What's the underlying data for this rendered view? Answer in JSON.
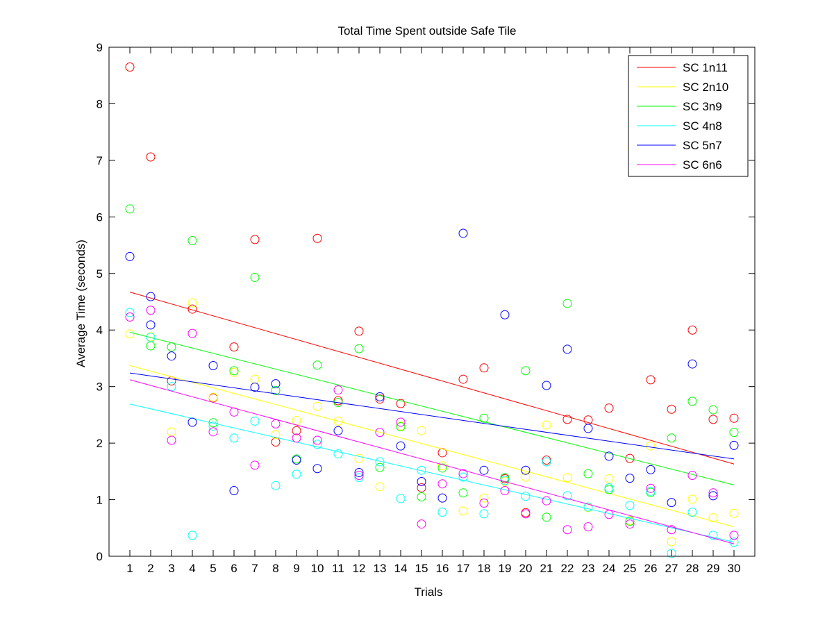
{
  "chart_data": {
    "type": "scatter",
    "title": "Total Time Spent outside Safe Tile",
    "xlabel": "Trials",
    "ylabel": "Average Time (seconds)",
    "xlim": [
      0,
      31
    ],
    "ylim": [
      0,
      9
    ],
    "xticks": [
      1,
      2,
      3,
      4,
      5,
      6,
      7,
      8,
      9,
      10,
      11,
      12,
      13,
      14,
      15,
      16,
      17,
      18,
      19,
      20,
      21,
      22,
      23,
      24,
      25,
      26,
      27,
      28,
      29,
      30
    ],
    "yticks": [
      0,
      1,
      2,
      3,
      4,
      5,
      6,
      7,
      8,
      9
    ],
    "grid": false,
    "legend_position": "top-right",
    "x": [
      1,
      2,
      3,
      4,
      5,
      6,
      7,
      8,
      9,
      10,
      11,
      12,
      13,
      14,
      15,
      16,
      17,
      18,
      19,
      20,
      21,
      22,
      23,
      24,
      25,
      26,
      27,
      28,
      29,
      30
    ],
    "series": [
      {
        "name": "SC 1n11",
        "color": "#ff0000",
        "values": [
          8.65,
          7.06,
          3.1,
          4.37,
          2.8,
          3.7,
          5.6,
          2.02,
          2.22,
          5.62,
          2.75,
          3.98,
          2.78,
          2.7,
          1.21,
          1.83,
          3.13,
          3.33,
          1.37,
          0.77,
          1.7,
          2.42,
          2.41,
          2.62,
          1.73,
          3.12,
          2.6,
          4.0,
          2.42,
          2.44
        ],
        "fit": [
          4.67,
          1.63
        ]
      },
      {
        "name": "SC 2n10",
        "color": "#ffff00",
        "values": [
          3.93,
          3.88,
          2.2,
          4.48,
          2.81,
          3.25,
          3.13,
          2.15,
          2.4,
          2.65,
          2.39,
          1.73,
          1.23,
          2.3,
          2.22,
          1.6,
          0.8,
          1.03,
          1.32,
          1.4,
          2.32,
          1.39,
          0.86,
          1.37,
          0.63,
          1.95,
          0.26,
          1.01,
          0.68,
          0.76
        ],
        "fit": [
          3.37,
          0.52
        ]
      },
      {
        "name": "SC 3n9",
        "color": "#00ff00",
        "values": [
          6.14,
          3.72,
          3.7,
          5.58,
          2.36,
          3.28,
          4.93,
          2.93,
          1.72,
          3.38,
          2.72,
          3.67,
          1.57,
          2.29,
          1.05,
          1.56,
          1.12,
          2.44,
          1.39,
          3.28,
          0.69,
          4.47,
          1.46,
          1.18,
          0.62,
          1.13,
          2.09,
          2.74,
          2.59,
          2.19
        ],
        "fit": [
          3.96,
          1.26
        ]
      },
      {
        "name": "SC 4n8",
        "color": "#00ffff",
        "values": [
          4.31,
          3.87,
          3.0,
          0.37,
          2.3,
          2.09,
          2.39,
          1.25,
          1.45,
          1.98,
          1.81,
          1.39,
          1.67,
          1.02,
          1.52,
          0.78,
          1.4,
          0.75,
          1.34,
          1.06,
          1.67,
          1.07,
          0.87,
          1.21,
          0.9,
          1.15,
          0.05,
          0.78,
          0.37,
          0.25
        ],
        "fit": [
          2.69,
          0.25
        ]
      },
      {
        "name": "SC 5n7",
        "color": "#0000ff",
        "values": [
          5.3,
          4.59,
          3.54,
          2.37,
          3.37,
          1.16,
          2.99,
          3.05,
          1.7,
          1.55,
          2.22,
          1.48,
          2.82,
          1.95,
          1.32,
          1.03,
          5.71,
          1.52,
          4.27,
          1.52,
          3.02,
          3.66,
          2.26,
          1.77,
          1.38,
          1.53,
          0.95,
          3.4,
          1.07,
          1.96
        ],
        "extra_points": [
          [
            2,
            4.09
          ]
        ],
        "fit": [
          3.24,
          1.72
        ]
      },
      {
        "name": "SC 6n6",
        "color": "#ff00ff",
        "values": [
          4.23,
          4.35,
          2.05,
          3.94,
          2.2,
          2.55,
          1.61,
          2.34,
          2.09,
          2.05,
          2.94,
          1.43,
          2.19,
          2.37,
          0.57,
          1.28,
          1.46,
          0.94,
          1.16,
          0.75,
          0.98,
          0.47,
          0.52,
          0.74,
          0.57,
          1.2,
          0.47,
          1.43,
          1.12,
          0.37
        ],
        "fit": [
          3.12,
          0.22
        ]
      }
    ]
  }
}
